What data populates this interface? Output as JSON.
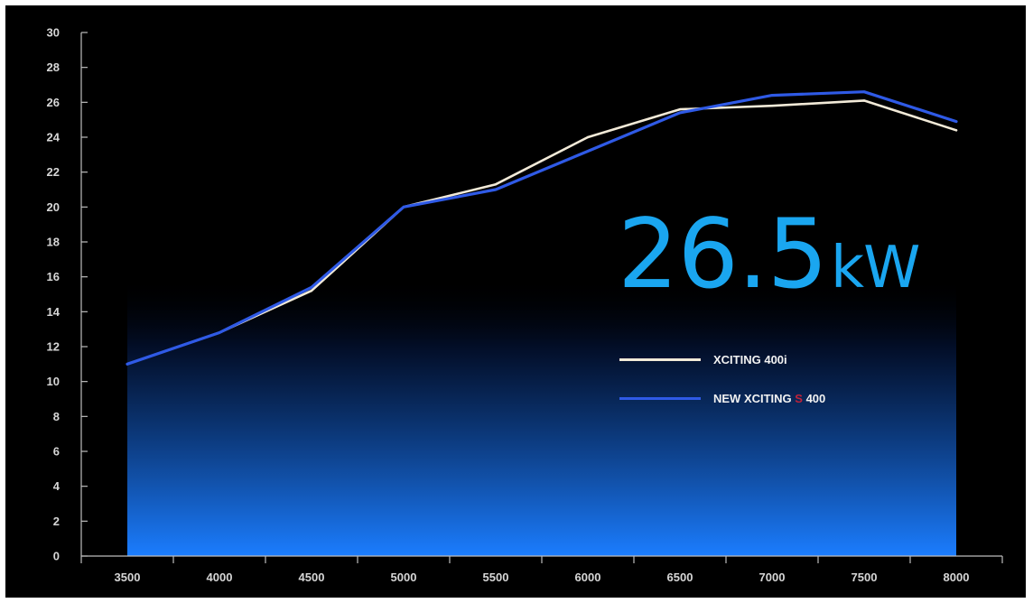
{
  "colors": {
    "background": "#000000",
    "series_1": "#f2ead8",
    "series_2": "#2f5ae6",
    "headline": "#1aa6f0",
    "accent": "#c0233a",
    "fill_top": "#000000",
    "fill_bottom": "#1b7dff"
  },
  "headline": {
    "value": "26.5",
    "unit": "kW"
  },
  "legend": {
    "items": [
      {
        "label": "XCITING 400i"
      },
      {
        "label_pre": "NEW XCITING ",
        "label_accent": "S",
        "label_post": " 400"
      }
    ]
  },
  "chart_data": {
    "type": "line",
    "title": "",
    "xlabel": "",
    "ylabel": "",
    "x": [
      3500,
      4000,
      4500,
      5000,
      5500,
      6000,
      6500,
      7000,
      7500,
      8000
    ],
    "xticks": [
      "3500",
      "4000",
      "4500",
      "5000",
      "5500",
      "6000",
      "6500",
      "7000",
      "7500",
      "8000"
    ],
    "ylim": [
      0,
      30
    ],
    "yticks": [
      0,
      2,
      4,
      6,
      8,
      10,
      12,
      14,
      16,
      18,
      20,
      22,
      24,
      26,
      28,
      30
    ],
    "grid": false,
    "legend_position": "right",
    "series": [
      {
        "name": "XCITING 400i",
        "values": [
          11.0,
          12.8,
          15.2,
          20.0,
          21.3,
          24.0,
          25.6,
          25.8,
          26.1,
          24.4
        ]
      },
      {
        "name": "NEW XCITING S 400",
        "values": [
          11.0,
          12.8,
          15.4,
          20.0,
          21.0,
          23.2,
          25.4,
          26.4,
          26.6,
          24.9
        ]
      }
    ],
    "area_under": true
  }
}
